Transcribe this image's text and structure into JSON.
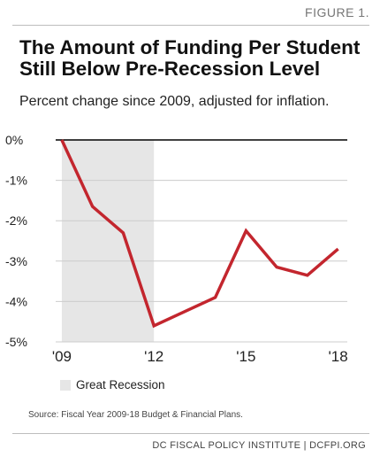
{
  "figure_label": "FIGURE 1.",
  "title_line1": "The Amount of Funding Per Student",
  "title_line2": "Still Below Pre-Recession Level",
  "subtitle": "Percent change since 2009, adjusted for inflation.",
  "legend_label": "Great Recession",
  "source": "Source: Fiscal Year 2009-18 Budget & Financial Plans.",
  "credit": "DC FISCAL POLICY INSTITUTE | DCFPI.ORG",
  "chart_data": {
    "type": "line",
    "x": [
      2009,
      2010,
      2011,
      2012,
      2013,
      2014,
      2015,
      2016,
      2017,
      2018
    ],
    "series": [
      {
        "values": [
          0,
          -1.65,
          -2.3,
          -4.6,
          -4.25,
          -3.9,
          -2.25,
          -3.15,
          -3.35,
          -2.7
        ]
      }
    ],
    "xlim": [
      2008.8,
      2018.3
    ],
    "ylim": [
      -5,
      0
    ],
    "x_ticks": [
      2009,
      2012,
      2015,
      2018
    ],
    "x_tick_labels": [
      "'09",
      "'12",
      "'15",
      "'18"
    ],
    "y_ticks": [
      0,
      -1,
      -2,
      -3,
      -4,
      -5
    ],
    "y_tick_labels": [
      "0%",
      "-1%",
      "-2%",
      "-3%",
      "-4%",
      "-5%"
    ],
    "shaded_region": {
      "x_start": 2009,
      "x_end": 2012
    },
    "grid": true,
    "colors": {
      "line": "#c3262e",
      "shade": "#e6e6e6",
      "grid": "#cccccc",
      "zero_line": "#000000"
    }
  }
}
